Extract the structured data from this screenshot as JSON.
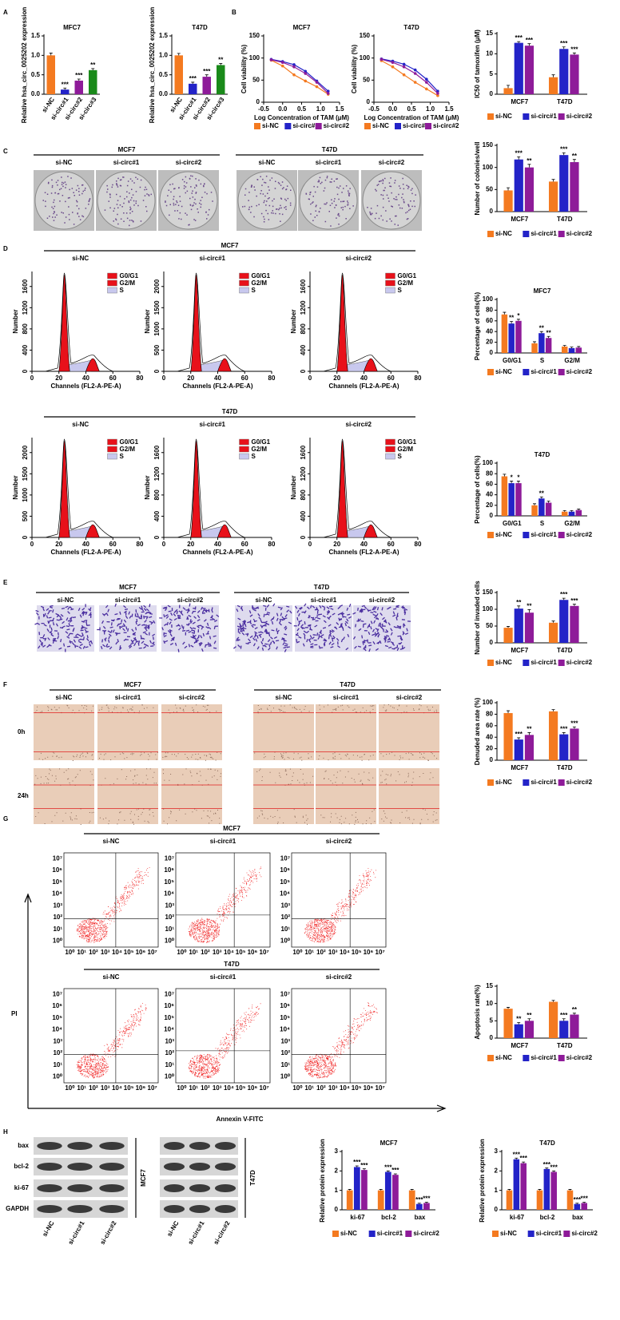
{
  "figure": {
    "panel_letters": [
      "A",
      "B",
      "C",
      "D",
      "E",
      "F",
      "G",
      "H"
    ],
    "colony": {
      "groups": [
        {
          "title": "MCF7",
          "lanes": [
            "si-NC",
            "si-circ#1",
            "si-circ#2"
          ]
        },
        {
          "title": "T47D",
          "lanes": [
            "si-NC",
            "si-circ#1",
            "si-circ#2"
          ]
        }
      ]
    },
    "cell_cycle": {
      "groups": [
        {
          "title": "MCF7",
          "lanes": [
            "si-NC",
            "si-circ#1",
            "si-circ#2"
          ],
          "yticks": [
            [
              0,
              400,
              800,
              1200,
              1600
            ],
            [
              0,
              500,
              1000,
              1500,
              2000
            ],
            [
              0,
              400,
              800,
              1200,
              1600
            ]
          ]
        },
        {
          "title": "T47D",
          "lanes": [
            "si-NC",
            "si-circ#1",
            "si-circ#2"
          ],
          "yticks": [
            [
              0,
              500,
              1000,
              1500,
              2000
            ],
            [
              0,
              400,
              800,
              1200,
              1600
            ],
            [
              0,
              400,
              800,
              1200,
              1600
            ]
          ]
        }
      ],
      "legend": [
        "G0/G1",
        "G2/M",
        "S"
      ],
      "x_label": "Channels (FL2-A-PE-A)",
      "y_label": "Number",
      "xticks": [
        0,
        20,
        40,
        60,
        80
      ]
    },
    "invasion": {
      "groups": [
        {
          "title": "MCF7",
          "lanes": [
            "si-NC",
            "si-circ#1",
            "si-circ#2"
          ]
        },
        {
          "title": "T47D",
          "lanes": [
            "si-NC",
            "si-circ#1",
            "si-circ#2"
          ]
        }
      ]
    },
    "wound": {
      "groups": [
        {
          "title": "MCF7",
          "lanes": [
            "si-NC",
            "si-circ#1",
            "si-circ#2"
          ]
        },
        {
          "title": "T47D",
          "lanes": [
            "si-NC",
            "si-circ#1",
            "si-circ#2"
          ]
        }
      ],
      "rows": [
        "0h",
        "24h"
      ]
    },
    "apoptosis_flow": {
      "groups": [
        {
          "title": "MCF7",
          "lanes": [
            "si-NC",
            "si-circ#1",
            "si-circ#2"
          ]
        },
        {
          "title": "T47D",
          "lanes": [
            "si-NC",
            "si-circ#1",
            "si-circ#2"
          ]
        }
      ],
      "ticks": [
        "10⁰",
        "10¹",
        "10²",
        "10³",
        "10⁴",
        "10⁵",
        "10⁶",
        "10⁷"
      ],
      "y_label": "PI",
      "x_label": "Annexin V-FITC"
    },
    "western": {
      "proteins": [
        "bax",
        "bcl-2",
        "ki-67",
        "GAPDH"
      ],
      "groups": [
        {
          "title": "MCF7",
          "lanes": [
            "si-NC",
            "si-circ#1",
            "si-circ#2"
          ]
        },
        {
          "title": "T47D",
          "lanes": [
            "si-NC",
            "si-circ#1",
            "si-circ#2"
          ]
        }
      ]
    }
  },
  "chart_data": [
    {
      "type": "bar",
      "title": "MFC7",
      "y_label": "Relative hsa_circ_0025202 expression",
      "categories": [
        "si-NC",
        "si-circ#1",
        "si-circ#2",
        "si-circ#3"
      ],
      "values": [
        1.0,
        0.12,
        0.35,
        0.62
      ],
      "errors": [
        0.06,
        0.04,
        0.04,
        0.04
      ],
      "annotations": [
        null,
        "***",
        "***",
        "**"
      ],
      "colors": [
        "#f47a20",
        "#2323c8",
        "#8e1b99",
        "#1a8a1a"
      ],
      "ylim": [
        0,
        1.5
      ],
      "yticks": [
        {
          "value": 0,
          "label": "0.0"
        },
        0.5,
        {
          "value": 1,
          "label": "1.0"
        },
        1.5
      ]
    },
    {
      "type": "bar",
      "title": "T47D",
      "y_label": "Relative hsa_circ_0025202 expression",
      "categories": [
        "si-NC",
        "si-circ#1",
        "si-circ#2",
        "si-circ#3"
      ],
      "values": [
        1.0,
        0.27,
        0.45,
        0.75
      ],
      "errors": [
        0.05,
        0.04,
        0.05,
        0.04
      ],
      "annotations": [
        null,
        "***",
        "***",
        "**"
      ],
      "colors": [
        "#f47a20",
        "#2323c8",
        "#8e1b99",
        "#1a8a1a"
      ],
      "ylim": [
        0,
        1.5
      ],
      "yticks": [
        {
          "value": 0,
          "label": "0.0"
        },
        0.5,
        {
          "value": 1,
          "label": "1.0"
        },
        1.5
      ]
    },
    {
      "type": "line",
      "title": "MCF7",
      "x_label": "Log Concentration of TAM (μM)",
      "y_label": "Cell viability (%)",
      "x": [
        -0.3,
        0,
        0.3,
        0.6,
        0.9,
        1.2
      ],
      "series": [
        {
          "name": "si-NC",
          "color": "#f47a20",
          "values": [
            95,
            82,
            62,
            48,
            35,
            18
          ]
        },
        {
          "name": "si-circ#1",
          "color": "#2323c8",
          "values": [
            97,
            92,
            85,
            70,
            48,
            25
          ]
        },
        {
          "name": "si-circ#2",
          "color": "#8e1b99",
          "values": [
            96,
            90,
            80,
            65,
            45,
            20
          ]
        }
      ],
      "xlim": [
        -0.5,
        1.5
      ],
      "xticks": [
        -0.5,
        {
          "value": 0,
          "label": "0.0"
        },
        0.5,
        {
          "value": 1,
          "label": "1.0"
        },
        1.5
      ],
      "ylim": [
        0,
        150
      ],
      "yticks": [
        0,
        50,
        100,
        150
      ]
    },
    {
      "type": "line",
      "title": "T47D",
      "x_label": "Log Concentration of TAM (μM)",
      "y_label": "Cell viability (%)",
      "x": [
        -0.3,
        0,
        0.3,
        0.6,
        0.9,
        1.2
      ],
      "series": [
        {
          "name": "si-NC",
          "color": "#f47a20",
          "values": [
            94,
            80,
            62,
            45,
            30,
            15
          ]
        },
        {
          "name": "si-circ#1",
          "color": "#2323c8",
          "values": [
            98,
            93,
            86,
            73,
            52,
            25
          ]
        },
        {
          "name": "si-circ#2",
          "color": "#8e1b99",
          "values": [
            97,
            90,
            80,
            65,
            45,
            20
          ]
        }
      ],
      "xlim": [
        -0.5,
        1.5
      ],
      "xticks": [
        -0.5,
        {
          "value": 0,
          "label": "0.0"
        },
        0.5,
        {
          "value": 1,
          "label": "1.0"
        },
        1.5
      ],
      "ylim": [
        0,
        150
      ],
      "yticks": [
        0,
        50,
        100,
        150
      ]
    },
    {
      "type": "bar",
      "y_label": "IC50 of tamoxifen (μM)",
      "categories": [
        "MCF7",
        "T47D"
      ],
      "series": [
        {
          "name": "si-NC",
          "color": "#f47a20",
          "values": [
            1.5,
            4.2
          ],
          "errors": [
            0.7,
            0.6
          ],
          "annotations": [
            null,
            null
          ]
        },
        {
          "name": "si-circ#1",
          "color": "#2323c8",
          "values": [
            12.7,
            11.2
          ],
          "errors": [
            0.3,
            0.5
          ],
          "annotations": [
            "***",
            "***"
          ]
        },
        {
          "name": "si-circ#2",
          "color": "#8e1b99",
          "values": [
            12.0,
            9.8
          ],
          "errors": [
            0.5,
            0.4
          ],
          "annotations": [
            "***",
            "***"
          ]
        }
      ],
      "ylim": [
        0,
        15
      ],
      "yticks": [
        0,
        5,
        10,
        15
      ]
    },
    {
      "type": "bar",
      "y_label": "Number of colonies/well",
      "categories": [
        "MCF7",
        "T47D"
      ],
      "series": [
        {
          "name": "si-NC",
          "color": "#f47a20",
          "values": [
            48,
            68
          ],
          "errors": [
            6,
            5
          ],
          "annotations": [
            null,
            null
          ]
        },
        {
          "name": "si-circ#1",
          "color": "#2323c8",
          "values": [
            118,
            128
          ],
          "errors": [
            6,
            5
          ],
          "annotations": [
            "***",
            "***"
          ]
        },
        {
          "name": "si-circ#2",
          "color": "#8e1b99",
          "values": [
            100,
            112
          ],
          "errors": [
            7,
            6
          ],
          "annotations": [
            "**",
            "**"
          ]
        }
      ],
      "ylim": [
        0,
        150
      ],
      "yticks": [
        0,
        50,
        100,
        150
      ]
    },
    {
      "type": "bar",
      "title": "MFC7",
      "y_label": "Percentage of cells(%)",
      "categories": [
        "G0/G1",
        "S",
        "G2/M"
      ],
      "series": [
        {
          "name": "si-NC",
          "color": "#f47a20",
          "values": [
            72,
            18,
            12
          ],
          "errors": [
            4,
            3,
            2
          ],
          "annotations": [
            null,
            null,
            null
          ]
        },
        {
          "name": "si-circ#1",
          "color": "#2323c8",
          "values": [
            55,
            37,
            9
          ],
          "errors": [
            4,
            3,
            2
          ],
          "annotations": [
            "**",
            "**",
            null
          ]
        },
        {
          "name": "si-circ#2",
          "color": "#8e1b99",
          "values": [
            60,
            28,
            10
          ],
          "errors": [
            3,
            3,
            2
          ],
          "annotations": [
            "*",
            "**",
            null
          ]
        }
      ],
      "ylim": [
        0,
        100
      ],
      "yticks": [
        0,
        20,
        40,
        60,
        80,
        100
      ]
    },
    {
      "type": "bar",
      "title": "T47D",
      "y_label": "Percentage of cells(%)",
      "categories": [
        "G0/G1",
        "S",
        "G2/M"
      ],
      "series": [
        {
          "name": "si-NC",
          "color": "#f47a20",
          "values": [
            75,
            20,
            8
          ],
          "errors": [
            4,
            3,
            2
          ],
          "annotations": [
            null,
            null,
            null
          ]
        },
        {
          "name": "si-circ#1",
          "color": "#2323c8",
          "values": [
            62,
            33,
            8
          ],
          "errors": [
            4,
            3,
            2
          ],
          "annotations": [
            "*",
            "**",
            null
          ]
        },
        {
          "name": "si-circ#2",
          "color": "#8e1b99",
          "values": [
            62,
            25,
            11
          ],
          "errors": [
            4,
            3,
            2
          ],
          "annotations": [
            "*",
            null,
            null
          ]
        }
      ],
      "ylim": [
        0,
        100
      ],
      "yticks": [
        0,
        20,
        40,
        60,
        80,
        100
      ]
    },
    {
      "type": "bar",
      "y_label": "Number of invaded cells",
      "categories": [
        "MCF7",
        "T47D"
      ],
      "series": [
        {
          "name": "si-NC",
          "color": "#f47a20",
          "values": [
            45,
            60
          ],
          "errors": [
            4,
            5
          ],
          "annotations": [
            null,
            null
          ]
        },
        {
          "name": "si-circ#1",
          "color": "#2323c8",
          "values": [
            102,
            128
          ],
          "errors": [
            8,
            5
          ],
          "annotations": [
            "**",
            "***"
          ]
        },
        {
          "name": "si-circ#2",
          "color": "#8e1b99",
          "values": [
            90,
            110
          ],
          "errors": [
            9,
            5
          ],
          "annotations": [
            "**",
            "***"
          ]
        }
      ],
      "ylim": [
        0,
        150
      ],
      "yticks": [
        0,
        50,
        100,
        150
      ]
    },
    {
      "type": "bar",
      "y_label": "Denuded area rate (%)",
      "categories": [
        "MCF7",
        "T47D"
      ],
      "series": [
        {
          "name": "si-NC",
          "color": "#f47a20",
          "values": [
            82,
            85
          ],
          "errors": [
            4,
            3
          ],
          "annotations": [
            null,
            null
          ]
        },
        {
          "name": "si-circ#1",
          "color": "#2323c8",
          "values": [
            36,
            45
          ],
          "errors": [
            3,
            3
          ],
          "annotations": [
            "***",
            "***"
          ]
        },
        {
          "name": "si-circ#2",
          "color": "#8e1b99",
          "values": [
            44,
            55
          ],
          "errors": [
            4,
            3
          ],
          "annotations": [
            "**",
            "***"
          ]
        }
      ],
      "ylim": [
        0,
        100
      ],
      "yticks": [
        0,
        20,
        40,
        60,
        80,
        100
      ]
    },
    {
      "type": "bar",
      "y_label": "Apoptosis rate(%)",
      "categories": [
        "MCF7",
        "T47D"
      ],
      "series": [
        {
          "name": "si-NC",
          "color": "#f47a20",
          "values": [
            8.5,
            10.5
          ],
          "errors": [
            0.4,
            0.4
          ],
          "annotations": [
            null,
            null
          ]
        },
        {
          "name": "si-circ#1",
          "color": "#2323c8",
          "values": [
            4,
            5
          ],
          "errors": [
            0.5,
            0.6
          ],
          "annotations": [
            "**",
            "***"
          ]
        },
        {
          "name": "si-circ#2",
          "color": "#8e1b99",
          "values": [
            5,
            6.8
          ],
          "errors": [
            0.6,
            0.4
          ],
          "annotations": [
            "**",
            "**"
          ]
        }
      ],
      "ylim": [
        0,
        15
      ],
      "yticks": [
        0,
        5,
        10,
        15
      ]
    },
    {
      "type": "bar",
      "title": "MCF7",
      "y_label": "Relative protein expression",
      "categories": [
        "ki-67",
        "bcl-2",
        "bax"
      ],
      "series": [
        {
          "name": "si-NC",
          "color": "#f47a20",
          "values": [
            1,
            1,
            1
          ],
          "errors": [
            0.05,
            0.05,
            0.05
          ],
          "annotations": [
            null,
            null,
            null
          ]
        },
        {
          "name": "si-circ#1",
          "color": "#2323c8",
          "values": [
            2.2,
            1.95,
            0.3
          ],
          "errors": [
            0.06,
            0.05,
            0.04
          ],
          "annotations": [
            "***",
            "***",
            "***"
          ]
        },
        {
          "name": "si-circ#2",
          "color": "#8e1b99",
          "values": [
            2.05,
            1.8,
            0.35
          ],
          "errors": [
            0.06,
            0.05,
            0.04
          ],
          "annotations": [
            "***",
            "***",
            "***"
          ]
        }
      ],
      "ylim": [
        0,
        3
      ],
      "yticks": [
        0,
        1,
        2,
        3
      ]
    },
    {
      "type": "bar",
      "title": "T47D",
      "y_label": "Relative protein expression",
      "categories": [
        "ki-67",
        "bcl-2",
        "bax"
      ],
      "series": [
        {
          "name": "si-NC",
          "color": "#f47a20",
          "values": [
            1,
            1,
            1
          ],
          "errors": [
            0.05,
            0.05,
            0.05
          ],
          "annotations": [
            null,
            null,
            null
          ]
        },
        {
          "name": "si-circ#1",
          "color": "#2323c8",
          "values": [
            2.6,
            2.1,
            0.3
          ],
          "errors": [
            0.06,
            0.05,
            0.04
          ],
          "annotations": [
            "***",
            "***",
            "***"
          ]
        },
        {
          "name": "si-circ#2",
          "color": "#8e1b99",
          "values": [
            2.4,
            1.95,
            0.35
          ],
          "errors": [
            0.06,
            0.05,
            0.04
          ],
          "annotations": [
            "***",
            "***",
            "***"
          ]
        }
      ],
      "ylim": [
        0,
        3
      ],
      "yticks": [
        0,
        1,
        2,
        3
      ]
    }
  ]
}
